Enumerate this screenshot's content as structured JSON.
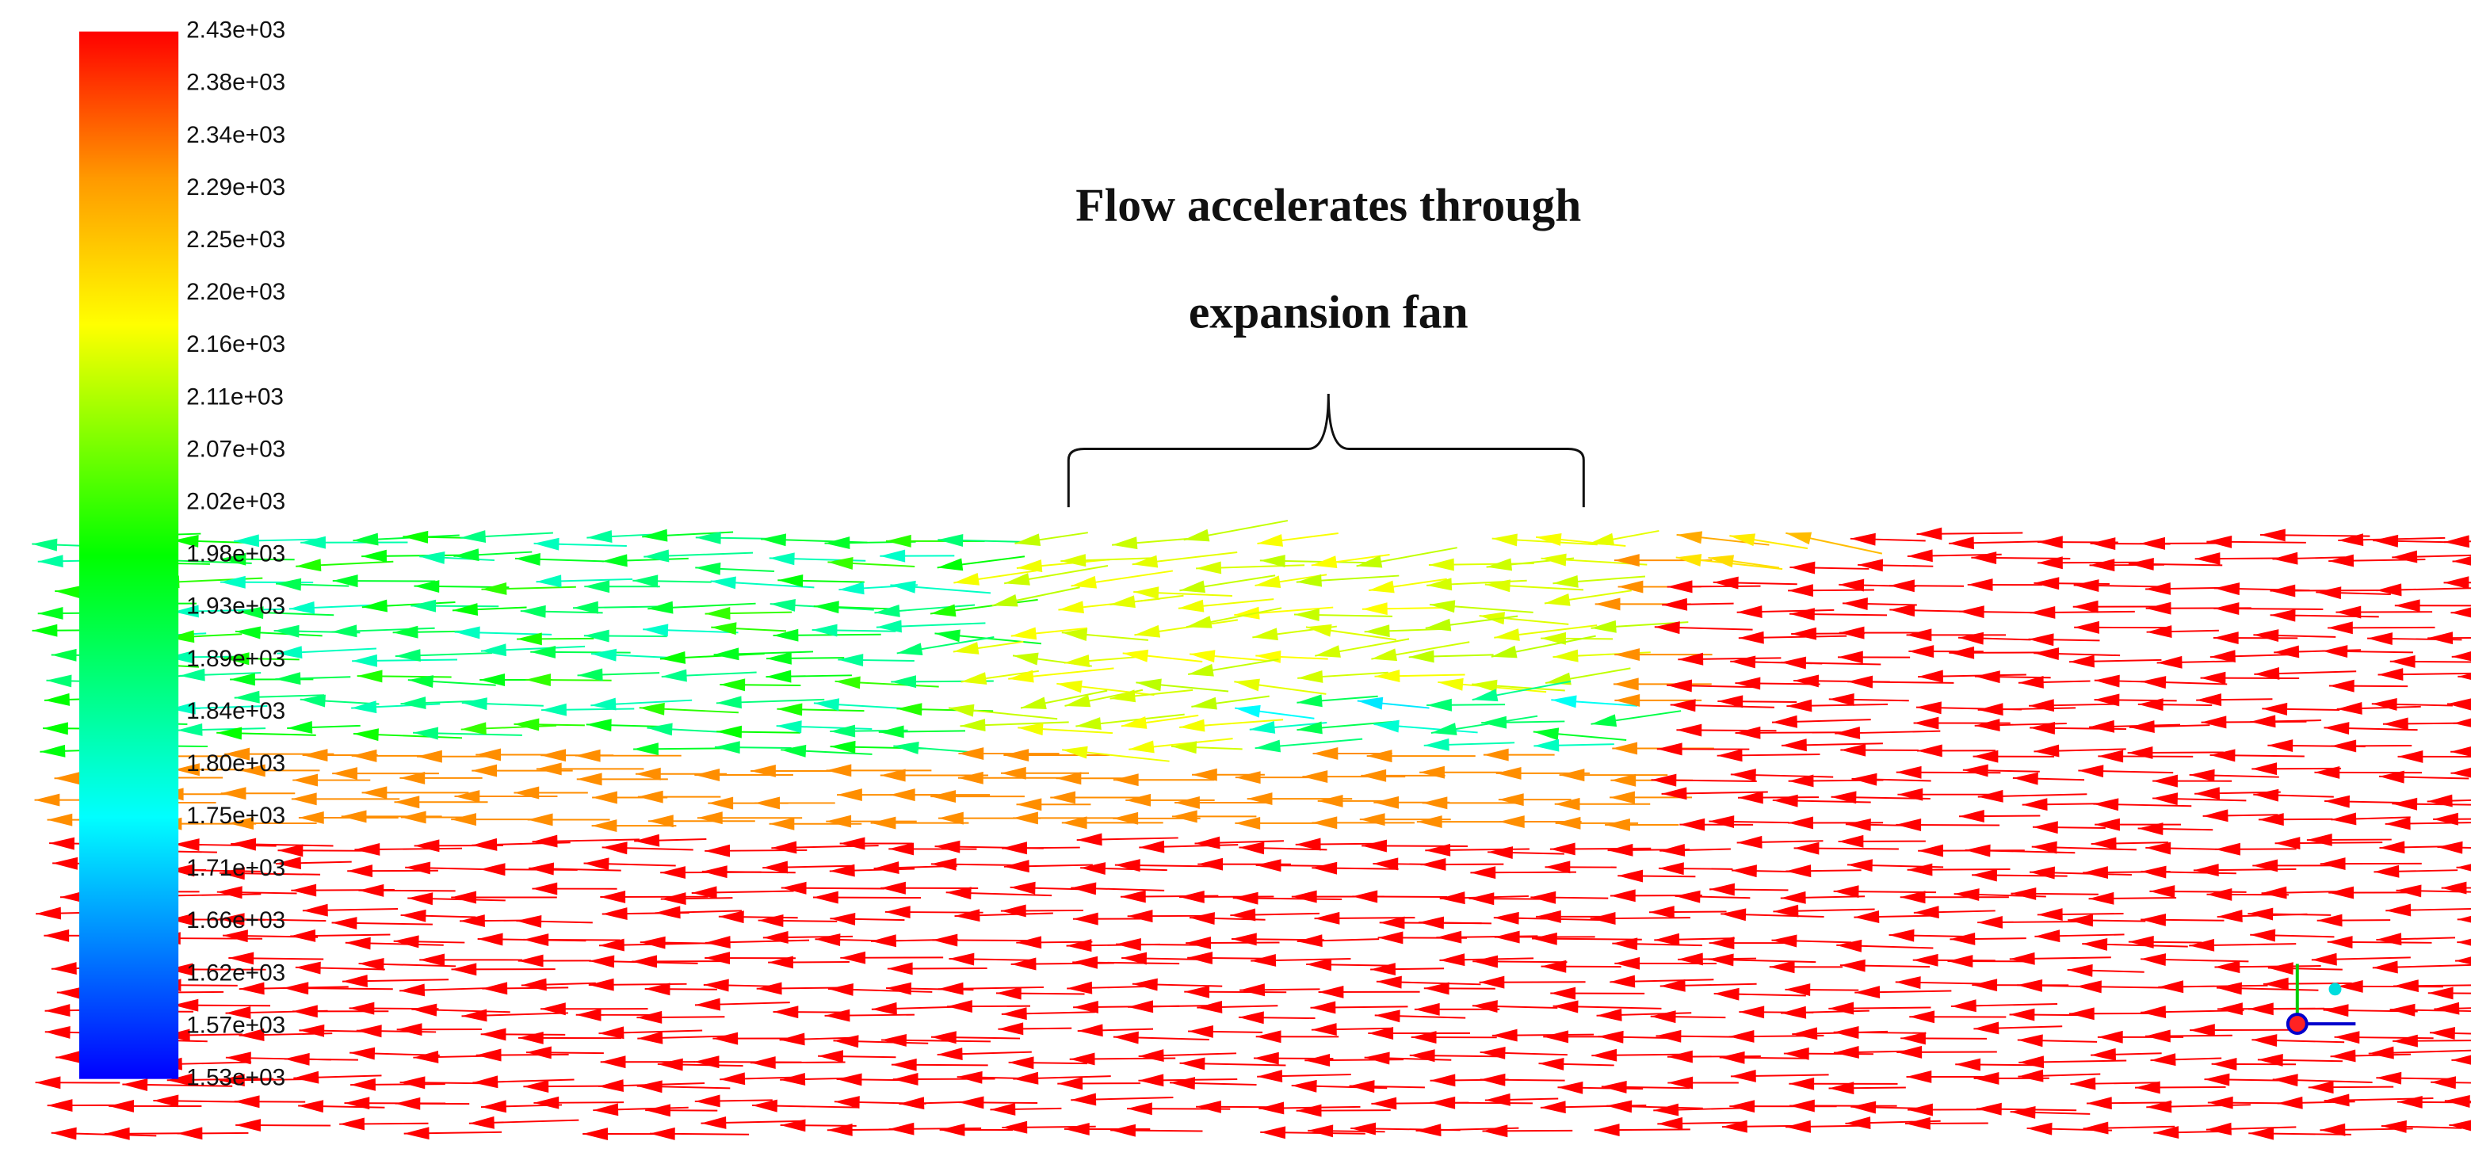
{
  "colorbar": {
    "labels": [
      "2.43e+03",
      "2.38e+03",
      "2.34e+03",
      "2.29e+03",
      "2.25e+03",
      "2.20e+03",
      "2.16e+03",
      "2.11e+03",
      "2.07e+03",
      "2.02e+03",
      "1.98e+03",
      "1.93e+03",
      "1.89e+03",
      "1.84e+03",
      "1.80e+03",
      "1.75e+03",
      "1.71e+03",
      "1.66e+03",
      "1.62e+03",
      "1.57e+03",
      "1.53e+03"
    ]
  },
  "annotation": {
    "lines": [
      "Flow accelerates through",
      "expansion fan"
    ]
  }
}
